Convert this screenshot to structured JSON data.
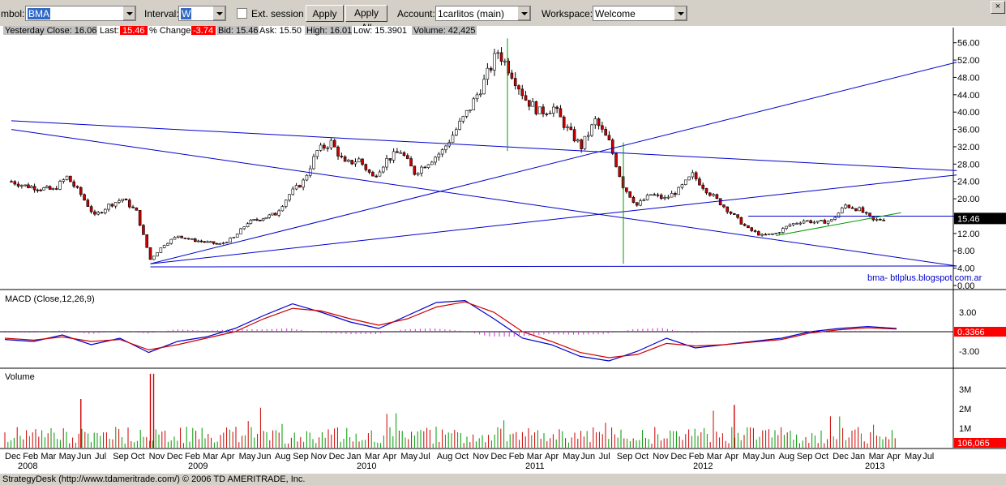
{
  "toolbar": {
    "symbol_label": "mbol:",
    "symbol_value": "BMA",
    "interval_label": "Interval:",
    "interval_value": "W",
    "ext_session_label": "Ext. session",
    "apply_label": "Apply",
    "apply_all_label": "Apply All",
    "account_label": "Account:",
    "account_value": "1carlitos (main)",
    "workspace_label": "Workspace:",
    "workspace_value": "Welcome",
    "close_glyph": "×"
  },
  "quote": {
    "yesterday_close": "Yesterday Close: 16.06",
    "last_label": "Last:",
    "last_value": "15.46",
    "pct_label": "% Change:",
    "pct_value": "-3.74",
    "bid": "Bid: 15.46",
    "ask": "Ask: 15.50",
    "high": "High: 16.01",
    "low": "Low: 15.3901",
    "volume": "Volume: 42,425"
  },
  "chart_data": [
    {
      "type": "candlestick",
      "panel": "price",
      "ylim": [
        0,
        58
      ],
      "yticks": [
        "56.00",
        "52.00",
        "48.00",
        "44.00",
        "40.00",
        "36.00",
        "32.00",
        "28.00",
        "24.00",
        "20.00",
        "16.00",
        "12.00",
        "8.00",
        "4.00",
        "0.00"
      ],
      "last_price_label": "15.46",
      "annotation": "bma- btlplus.blogspot.com.ar",
      "colors": {
        "up": "#000000",
        "down": "#cc0000",
        "trendline": "#0000cc",
        "support": "#009900",
        "vertical": "#009900"
      },
      "weekly_close_anchors": [
        {
          "x": "2007-12",
          "close": 24.0
        },
        {
          "x": "2008-01",
          "close": 23.0
        },
        {
          "x": "2008-03",
          "close": 22.0
        },
        {
          "x": "2008-04",
          "close": 25.0
        },
        {
          "x": "2008-05",
          "close": 21.0
        },
        {
          "x": "2008-06",
          "close": 16.0
        },
        {
          "x": "2008-07",
          "close": 18.5
        },
        {
          "x": "2008-08",
          "close": 20.0
        },
        {
          "x": "2008-09",
          "close": 17.0
        },
        {
          "x": "2008-10",
          "close": 6.0
        },
        {
          "x": "2008-11",
          "close": 9.5
        },
        {
          "x": "2008-12",
          "close": 11.5
        },
        {
          "x": "2009-01",
          "close": 10.5
        },
        {
          "x": "2009-03",
          "close": 9.5
        },
        {
          "x": "2009-04",
          "close": 11.0
        },
        {
          "x": "2009-05",
          "close": 14.5
        },
        {
          "x": "2009-07",
          "close": 16.5
        },
        {
          "x": "2009-08",
          "close": 21.0
        },
        {
          "x": "2009-09",
          "close": 24.0
        },
        {
          "x": "2009-10",
          "close": 31.0
        },
        {
          "x": "2009-11",
          "close": 33.0
        },
        {
          "x": "2009-12",
          "close": 28.0
        },
        {
          "x": "2010-01",
          "close": 29.0
        },
        {
          "x": "2010-02",
          "close": 25.0
        },
        {
          "x": "2010-03",
          "close": 29.0
        },
        {
          "x": "2010-04",
          "close": 31.0
        },
        {
          "x": "2010-05",
          "close": 26.0
        },
        {
          "x": "2010-06",
          "close": 28.5
        },
        {
          "x": "2010-07",
          "close": 31.0
        },
        {
          "x": "2010-08",
          "close": 36.0
        },
        {
          "x": "2010-09",
          "close": 41.0
        },
        {
          "x": "2010-10",
          "close": 47.0
        },
        {
          "x": "2010-11",
          "close": 54.0
        },
        {
          "x": "2010-12",
          "close": 49.0
        },
        {
          "x": "2011-01",
          "close": 43.0
        },
        {
          "x": "2011-02",
          "close": 40.0
        },
        {
          "x": "2011-03",
          "close": 41.0
        },
        {
          "x": "2011-04",
          "close": 36.0
        },
        {
          "x": "2011-05",
          "close": 32.0
        },
        {
          "x": "2011-06",
          "close": 38.0
        },
        {
          "x": "2011-07",
          "close": 33.0
        },
        {
          "x": "2011-08",
          "close": 23.0
        },
        {
          "x": "2011-09",
          "close": 18.5
        },
        {
          "x": "2011-10",
          "close": 21.0
        },
        {
          "x": "2011-11",
          "close": 20.0
        },
        {
          "x": "2011-12",
          "close": 22.0
        },
        {
          "x": "2012-01",
          "close": 25.5
        },
        {
          "x": "2012-02",
          "close": 22.0
        },
        {
          "x": "2012-03",
          "close": 19.0
        },
        {
          "x": "2012-04",
          "close": 16.0
        },
        {
          "x": "2012-05",
          "close": 13.0
        },
        {
          "x": "2012-06",
          "close": 11.5
        },
        {
          "x": "2012-07",
          "close": 12.0
        },
        {
          "x": "2012-08",
          "close": 14.0
        },
        {
          "x": "2012-09",
          "close": 15.0
        },
        {
          "x": "2012-10",
          "close": 14.5
        },
        {
          "x": "2012-11",
          "close": 15.0
        },
        {
          "x": "2012-12",
          "close": 18.5
        },
        {
          "x": "2013-01",
          "close": 17.5
        },
        {
          "x": "2013-02",
          "close": 15.0
        },
        {
          "x": "2013-03",
          "close": 15.46
        }
      ],
      "trendlines": [
        {
          "from": {
            "x": "2007-12",
            "y": 38.0
          },
          "to": {
            "x": "2013-08",
            "y": 26.5
          }
        },
        {
          "from": {
            "x": "2007-12",
            "y": 36.0
          },
          "to": {
            "x": "2013-08",
            "y": 4.5
          }
        },
        {
          "from": {
            "x": "2008-10",
            "y": 5.0
          },
          "to": {
            "x": "2013-08",
            "y": 51.5
          }
        },
        {
          "from": {
            "x": "2008-10",
            "y": 5.0
          },
          "to": {
            "x": "2013-08",
            "y": 25.5
          }
        },
        {
          "from": {
            "x": "2008-10",
            "y": 4.3
          },
          "to": {
            "x": "2013-08",
            "y": 4.5
          }
        },
        {
          "from": {
            "x": "2012-05",
            "y": 16.0
          },
          "to": {
            "x": "2013-08",
            "y": 16.0
          }
        }
      ]
    },
    {
      "type": "line",
      "panel": "macd",
      "title": "MACD (Close,12,26,9)",
      "yticks": [
        "3.00",
        "-3.00"
      ],
      "ylim": [
        -5,
        5
      ],
      "last_value_label": "0.3366",
      "series": [
        {
          "name": "MACD",
          "color": "#0000cc",
          "values": [
            -1.2,
            -1.5,
            -0.5,
            -2.0,
            -1.0,
            -3.2,
            -1.5,
            -0.8,
            0.5,
            2.5,
            4.3,
            3.0,
            1.5,
            0.5,
            2.5,
            4.5,
            4.8,
            2.0,
            -1.0,
            -2.0,
            -3.8,
            -4.5,
            -3.0,
            -1.0,
            -2.5,
            -2.0,
            -1.5,
            -1.0,
            0.0,
            0.5,
            0.8,
            0.5
          ]
        },
        {
          "name": "Signal",
          "color": "#cc0000",
          "values": [
            -1.0,
            -1.3,
            -0.8,
            -1.5,
            -1.2,
            -2.8,
            -2.0,
            -1.0,
            0.0,
            2.0,
            3.6,
            3.2,
            2.0,
            1.0,
            2.0,
            3.8,
            4.6,
            3.0,
            0.0,
            -1.5,
            -3.2,
            -4.0,
            -3.5,
            -1.8,
            -2.2,
            -2.0,
            -1.6,
            -1.2,
            -0.2,
            0.3,
            0.6,
            0.4
          ]
        }
      ]
    },
    {
      "type": "bar",
      "panel": "volume",
      "title": "Volume",
      "yticks": [
        "3M",
        "2M",
        "1M"
      ],
      "last_value_label": "106,065",
      "xtick_months": [
        "Dec",
        "Feb",
        "Mar",
        "May",
        "Jun",
        "Jul",
        "Sep",
        "Oct",
        "Nov",
        "Dec",
        "Feb",
        "Mar",
        "Apr",
        "May",
        "Jun",
        "Aug",
        "Sep",
        "Nov",
        "Dec",
        "Jan",
        "Mar",
        "Apr",
        "May",
        "Jul",
        "Aug",
        "Oct",
        "Nov",
        "Dec",
        "Feb",
        "Mar",
        "Apr",
        "May",
        "Jun",
        "Jul",
        "Sep",
        "Oct",
        "Nov",
        "Dec",
        "Feb",
        "Mar",
        "Apr",
        "May",
        "Jun",
        "Aug",
        "Sep",
        "Oct",
        "Dec",
        "Jan",
        "Mar",
        "Apr",
        "May",
        "Jul"
      ],
      "xtick_years": [
        "2008",
        "2009",
        "2010",
        "2011",
        "2012",
        "2013"
      ],
      "notable_bars": [
        {
          "x": "2008-05",
          "value": 2.5
        },
        {
          "x": "2008-10",
          "value": 3.8
        },
        {
          "x": "2008-10b",
          "value": 3.8
        },
        {
          "x": "2012-04",
          "value": 2.2
        }
      ]
    }
  ],
  "footer": {
    "status": "StrategyDesk (http://www.tdameritrade.com/) © 2006 TD AMERITRADE, Inc."
  }
}
